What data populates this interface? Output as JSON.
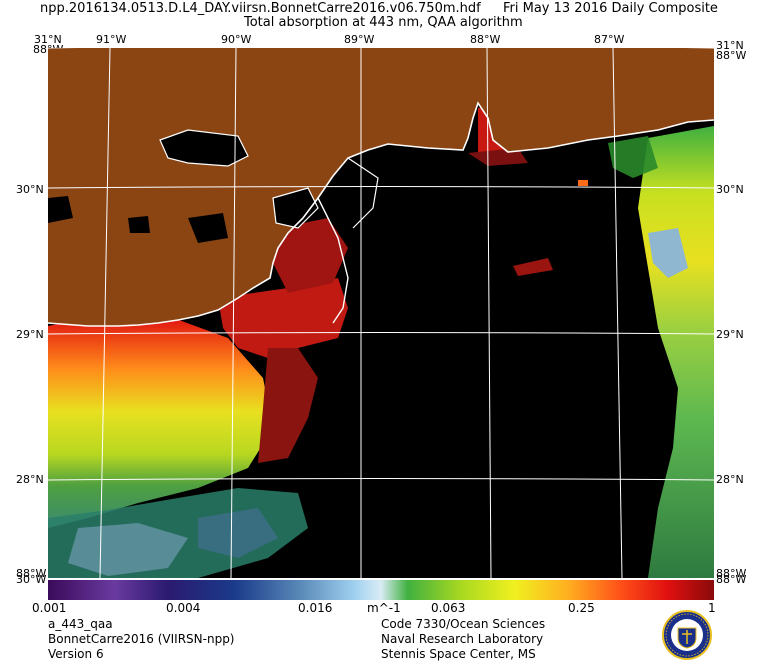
{
  "header": {
    "filename": "npp.2016134.0513.D.L4_DAY.viirsn.BonnetCarre2016.v06.750m.hdf",
    "date": "Fri May 13 2016 Daily Composite",
    "product": "Total absorption at 443 nm, QAA algorithm"
  },
  "axes": {
    "top_lon": [
      "91°W",
      "90°W",
      "89°W",
      "88°W",
      "87°W"
    ],
    "left_lat": [
      "31°N",
      "30°N",
      "29°N",
      "28°N"
    ],
    "right_lat": [
      "31°N",
      "30°N",
      "29°N",
      "28°N"
    ],
    "corner_top_left": "88°W",
    "corner_top_right": "88°W",
    "corner_bottom_left": "88°W",
    "corner_bottom_right": "88°W",
    "bottom_left_overlap": "30°W",
    "bottom_right_overlap": "88°W"
  },
  "colorbar": {
    "ticks": [
      "0.001",
      "0.004",
      "0.016",
      "m^-1",
      "0.063",
      "0.25",
      "1"
    ]
  },
  "footer": {
    "left": [
      "a_443_qaa",
      "BonnetCarre2016 (VIIRSN-npp)",
      "Version 6"
    ],
    "right": [
      "Code 7330/Ocean Sciences",
      "Naval Research Laboratory",
      "Stennis Space Center, MS"
    ]
  },
  "colors": {
    "land": "#8b4513",
    "ocean": "#000000",
    "coast": "#ffffff",
    "grid": "#ffffff"
  }
}
